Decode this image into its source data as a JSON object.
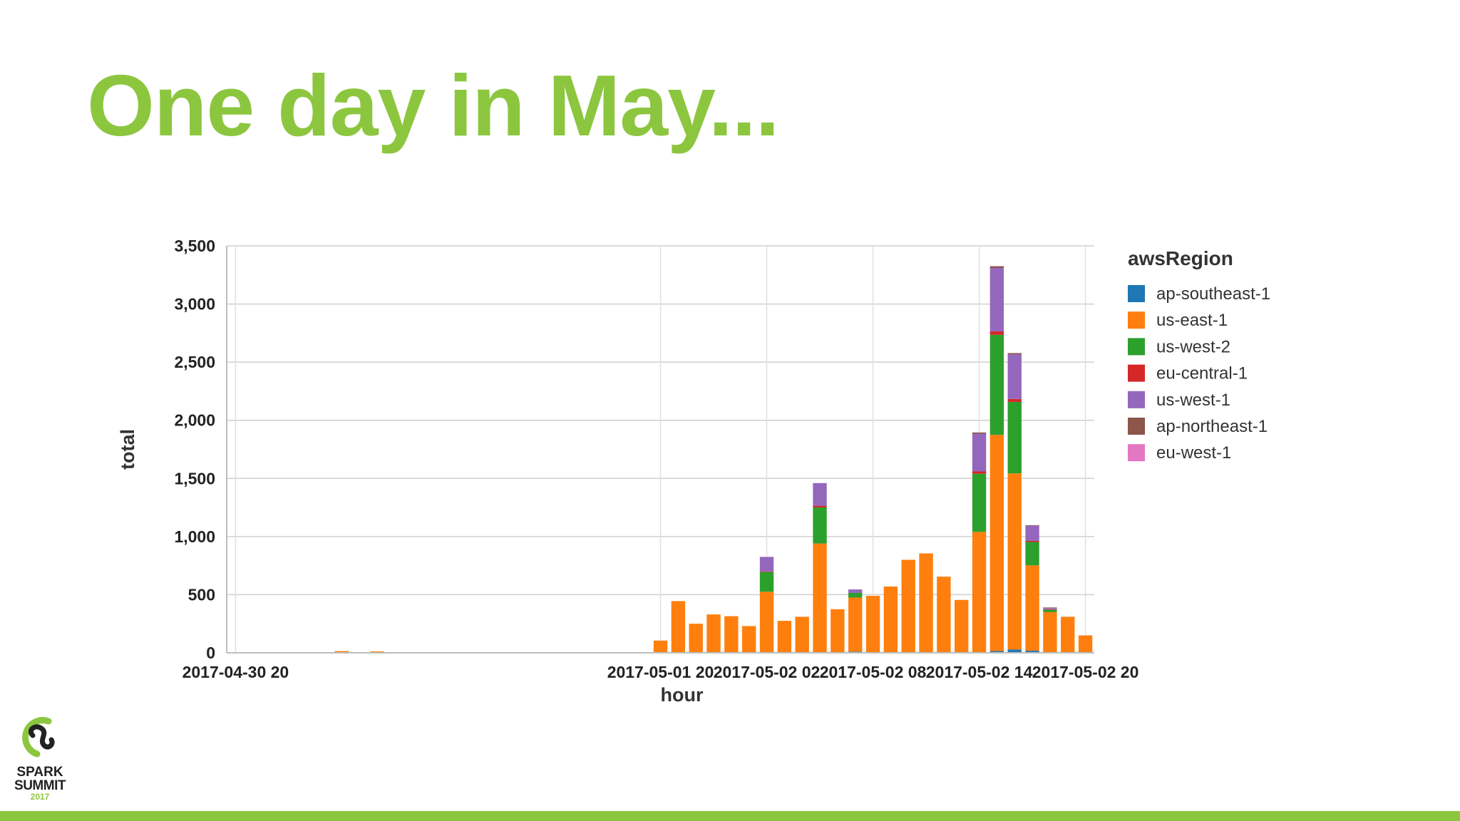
{
  "slide": {
    "title": "One day in May...",
    "logo": {
      "line1": "SPARK",
      "line2": "SUMMIT",
      "line3": "2017",
      "primary_color": "#8cc63f",
      "text_color": "#222222"
    },
    "accent_color": "#8cc63f"
  },
  "chart_data": {
    "type": "bar",
    "stacked": true,
    "xlabel": "hour",
    "ylabel": "total",
    "ylim": [
      0,
      3500
    ],
    "yticks": [
      0,
      500,
      1000,
      1500,
      2000,
      2500,
      3000,
      3500
    ],
    "ytick_labels": [
      "0",
      "500",
      "1,000",
      "1,500",
      "2,000",
      "2,500",
      "3,000",
      "3,500"
    ],
    "grid": true,
    "xlim": [
      "2017-04-30 19:30",
      "2017-05-02 20:30"
    ],
    "xtick_positions": [
      "2017-04-30 20:00",
      "2017-05-01 20:00",
      "2017-05-02 02:00",
      "2017-05-02 08:00",
      "2017-05-02 14:00",
      "2017-05-02 20:00"
    ],
    "xtick_labels": [
      "2017-04-30 20",
      "2017-05-01 20",
      "2017-05-02 02",
      "2017-05-02 08",
      "2017-05-02 14",
      "2017-05-02 20"
    ],
    "legend_title": "awsRegion",
    "legend_position": "right",
    "categories": [
      "2017-04-30 20:00",
      "2017-04-30 21:00",
      "2017-04-30 22:00",
      "2017-04-30 23:00",
      "2017-05-01 00:00",
      "2017-05-01 01:00",
      "2017-05-01 02:00",
      "2017-05-01 03:00",
      "2017-05-01 04:00",
      "2017-05-01 05:00",
      "2017-05-01 06:00",
      "2017-05-01 07:00",
      "2017-05-01 08:00",
      "2017-05-01 09:00",
      "2017-05-01 10:00",
      "2017-05-01 11:00",
      "2017-05-01 12:00",
      "2017-05-01 13:00",
      "2017-05-01 14:00",
      "2017-05-01 15:00",
      "2017-05-01 16:00",
      "2017-05-01 17:00",
      "2017-05-01 18:00",
      "2017-05-01 19:00",
      "2017-05-01 20:00",
      "2017-05-01 21:00",
      "2017-05-01 22:00",
      "2017-05-01 23:00",
      "2017-05-02 00:00",
      "2017-05-02 01:00",
      "2017-05-02 02:00",
      "2017-05-02 03:00",
      "2017-05-02 04:00",
      "2017-05-02 05:00",
      "2017-05-02 06:00",
      "2017-05-02 07:00",
      "2017-05-02 08:00",
      "2017-05-02 09:00",
      "2017-05-02 10:00",
      "2017-05-02 11:00",
      "2017-05-02 12:00",
      "2017-05-02 13:00",
      "2017-05-02 14:00",
      "2017-05-02 15:00",
      "2017-05-02 16:00",
      "2017-05-02 17:00",
      "2017-05-02 18:00",
      "2017-05-02 19:00",
      "2017-05-02 20:00"
    ],
    "series": [
      {
        "name": "ap-southeast-1",
        "color": "#1f77b4",
        "values": [
          3,
          0,
          4,
          0,
          0,
          0,
          0,
          0,
          0,
          0,
          0,
          0,
          0,
          0,
          0,
          0,
          0,
          0,
          0,
          0,
          0,
          0,
          0,
          0,
          0,
          0,
          0,
          0,
          0,
          0,
          5,
          0,
          0,
          0,
          0,
          10,
          0,
          0,
          0,
          0,
          0,
          0,
          0,
          15,
          28,
          18,
          0,
          0,
          0
        ]
      },
      {
        "name": "us-east-1",
        "color": "#ff7f0e",
        "values": [
          0,
          0,
          0,
          0,
          3,
          0,
          15,
          0,
          12,
          0,
          0,
          0,
          0,
          0,
          0,
          0,
          0,
          0,
          0,
          0,
          0,
          0,
          0,
          0,
          105,
          445,
          250,
          330,
          315,
          230,
          520,
          275,
          310,
          940,
          375,
          465,
          490,
          570,
          800,
          855,
          655,
          455,
          1040,
          1860,
          1515,
          735,
          350,
          310,
          150
        ]
      },
      {
        "name": "us-west-2",
        "color": "#2ca02c",
        "values": [
          0,
          0,
          0,
          0,
          0,
          0,
          0,
          0,
          0,
          0,
          0,
          0,
          0,
          0,
          0,
          0,
          0,
          0,
          0,
          0,
          0,
          0,
          0,
          0,
          0,
          0,
          0,
          0,
          0,
          0,
          170,
          0,
          0,
          310,
          0,
          40,
          0,
          0,
          0,
          0,
          0,
          0,
          500,
          860,
          615,
          200,
          20,
          0,
          0
        ]
      },
      {
        "name": "eu-central-1",
        "color": "#d62728",
        "values": [
          0,
          0,
          0,
          0,
          0,
          0,
          0,
          0,
          0,
          0,
          0,
          0,
          0,
          0,
          0,
          0,
          0,
          0,
          0,
          0,
          0,
          0,
          0,
          0,
          0,
          0,
          0,
          0,
          0,
          0,
          5,
          0,
          0,
          15,
          0,
          0,
          0,
          0,
          0,
          0,
          0,
          0,
          20,
          30,
          25,
          10,
          5,
          0,
          0
        ]
      },
      {
        "name": "us-west-1",
        "color": "#9467bd",
        "values": [
          0,
          0,
          0,
          0,
          0,
          0,
          0,
          0,
          0,
          0,
          0,
          0,
          0,
          0,
          0,
          0,
          0,
          0,
          0,
          0,
          0,
          0,
          0,
          0,
          0,
          0,
          0,
          0,
          0,
          0,
          125,
          0,
          0,
          195,
          0,
          30,
          0,
          0,
          0,
          0,
          0,
          0,
          325,
          545,
          385,
          130,
          10,
          0,
          0
        ]
      },
      {
        "name": "ap-northeast-1",
        "color": "#8c564b",
        "values": [
          0,
          0,
          0,
          0,
          0,
          0,
          0,
          0,
          0,
          0,
          0,
          0,
          0,
          0,
          0,
          0,
          0,
          0,
          0,
          0,
          0,
          0,
          0,
          0,
          0,
          0,
          0,
          0,
          0,
          0,
          0,
          0,
          0,
          0,
          0,
          0,
          0,
          0,
          0,
          0,
          0,
          0,
          10,
          15,
          10,
          5,
          5,
          0,
          0
        ]
      },
      {
        "name": "eu-west-1",
        "color": "#e377c2",
        "values": [
          0,
          0,
          0,
          0,
          0,
          0,
          0,
          0,
          0,
          0,
          0,
          0,
          0,
          0,
          0,
          0,
          0,
          0,
          0,
          0,
          0,
          0,
          0,
          0,
          0,
          0,
          0,
          0,
          0,
          0,
          0,
          0,
          0,
          0,
          0,
          0,
          0,
          0,
          0,
          0,
          0,
          0,
          0,
          0,
          0,
          0,
          0,
          0,
          0
        ]
      }
    ]
  }
}
